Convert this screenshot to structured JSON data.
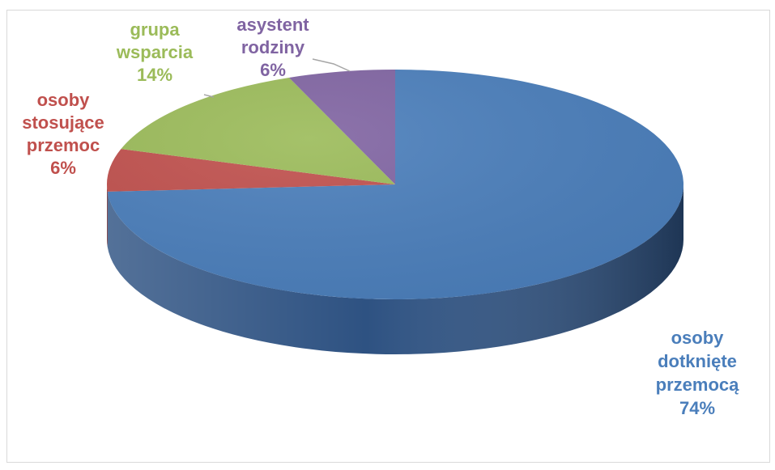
{
  "chart_data": {
    "type": "pie",
    "style": "3d",
    "slices": [
      {
        "label_lines": [
          "osoby",
          "dotknięte",
          "przemocą"
        ],
        "pct_label": "74%",
        "value": 74,
        "color": "#4a7ebb",
        "side_color": "#2e5282"
      },
      {
        "label_lines": [
          "osoby",
          "stosujące",
          "przemoc"
        ],
        "pct_label": "6%",
        "value": 6,
        "color": "#c0504d",
        "side_color": "#8a2e2c"
      },
      {
        "label_lines": [
          "grupa",
          "wsparcia"
        ],
        "pct_label": "14%",
        "value": 14,
        "color": "#9bbb59",
        "side_color": "#6b8a35"
      },
      {
        "label_lines": [
          "asystent",
          "rodziny"
        ],
        "pct_label": "6%",
        "value": 6,
        "color": "#8064a2",
        "side_color": "#5a4477"
      }
    ],
    "label_colors": [
      "#4a7ebb",
      "#c0504d",
      "#9bbb59",
      "#8064a2"
    ]
  }
}
